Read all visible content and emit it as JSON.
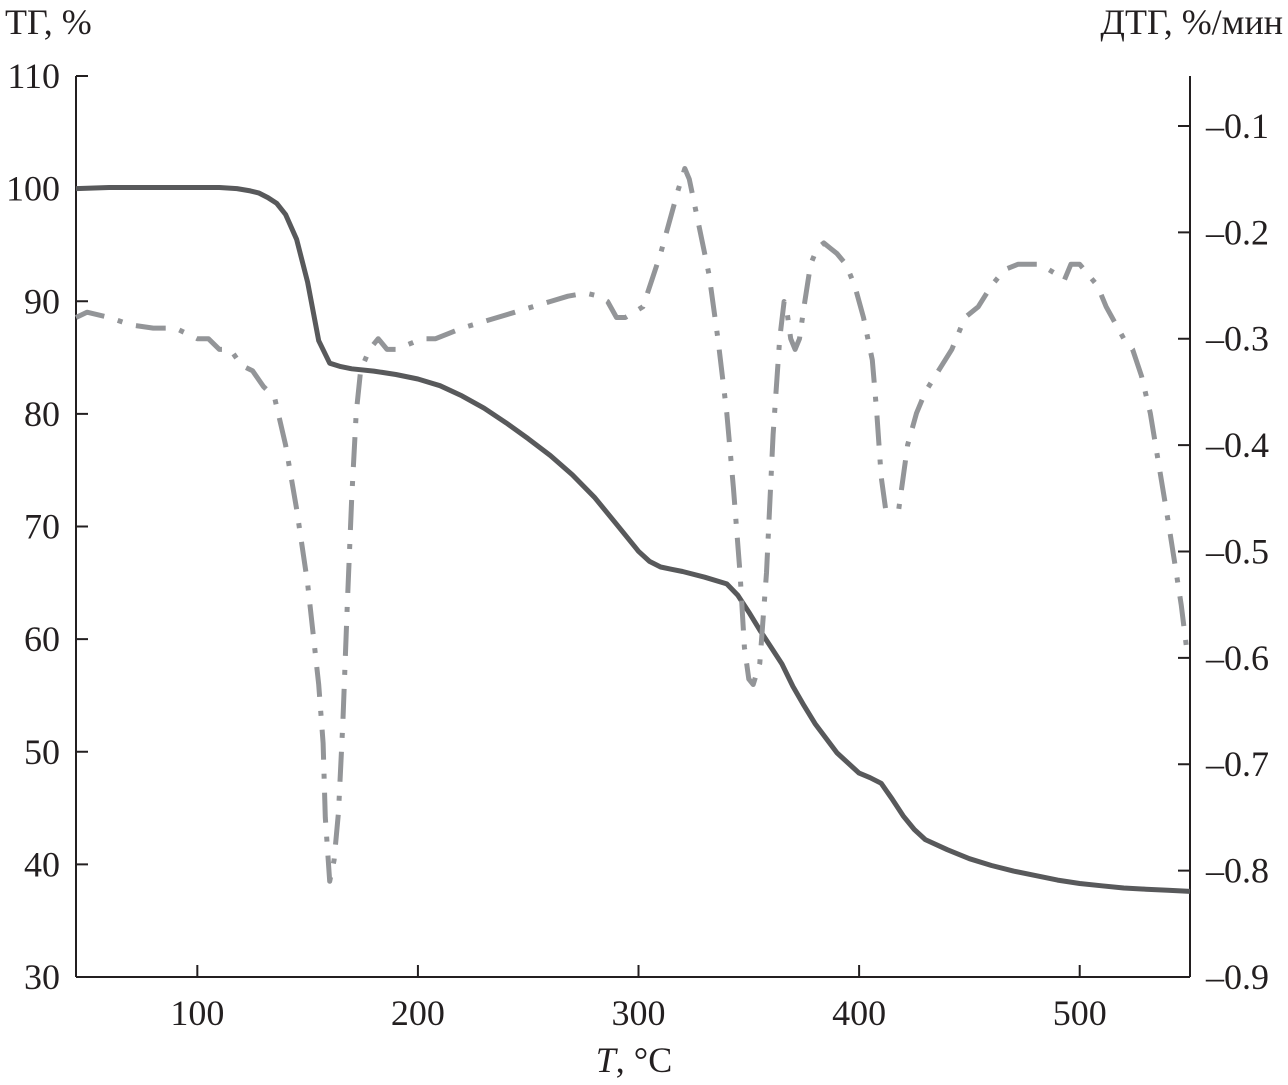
{
  "chart_data": {
    "type": "line",
    "title": "",
    "xlabel": "T, °C",
    "xlabel_var": "T",
    "xlabel_unit": ", °C",
    "ylabel_left": "ТГ, %",
    "ylabel_right": "ДТГ, %/мин",
    "xlim": [
      45,
      550
    ],
    "ylim_left": [
      30,
      110
    ],
    "ylim_right": [
      -0.9,
      -0.053
    ],
    "x_ticks": [
      100,
      200,
      300,
      400,
      500
    ],
    "y_ticks_left": [
      30,
      40,
      50,
      60,
      70,
      80,
      90,
      100,
      110
    ],
    "y_ticks_right": [
      -0.1,
      -0.2,
      -0.3,
      -0.4,
      -0.5,
      -0.6,
      -0.7,
      -0.8,
      -0.9
    ],
    "y_tick_labels_right": [
      "–0.1",
      "–0.2",
      "–0.3",
      "–0.4",
      "–0.5",
      "–0.6",
      "–0.7",
      "–0.8",
      "–0.9"
    ],
    "grid": false,
    "colors": {
      "tg": "#58595b",
      "dtg": "#939598",
      "axes": "#231f20"
    },
    "series": [
      {
        "axis": "left",
        "style": "solid",
        "x": [
          45,
          60,
          80,
          100,
          110,
          118,
          124,
          128,
          132,
          136,
          140,
          145,
          150,
          155,
          160,
          165,
          170,
          180,
          190,
          200,
          210,
          220,
          230,
          240,
          250,
          260,
          270,
          280,
          290,
          300,
          305,
          310,
          315,
          320,
          330,
          340,
          345,
          350,
          355,
          360,
          365,
          370,
          375,
          380,
          390,
          400,
          405,
          410,
          415,
          420,
          425,
          430,
          440,
          450,
          460,
          470,
          480,
          490,
          500,
          510,
          520,
          530,
          540,
          550
        ],
        "values": [
          100,
          100.1,
          100.1,
          100.1,
          100.1,
          100.0,
          99.8,
          99.6,
          99.2,
          98.7,
          97.7,
          95.5,
          91.7,
          86.5,
          84.5,
          84.2,
          84.0,
          83.8,
          83.5,
          83.1,
          82.5,
          81.6,
          80.5,
          79.2,
          77.8,
          76.3,
          74.6,
          72.6,
          70.2,
          67.8,
          66.9,
          66.4,
          66.2,
          66.0,
          65.5,
          64.9,
          63.9,
          62.4,
          60.8,
          59.3,
          57.8,
          55.8,
          54.1,
          52.5,
          49.9,
          48.1,
          47.7,
          47.2,
          45.8,
          44.3,
          43.1,
          42.2,
          41.3,
          40.5,
          39.9,
          39.4,
          39.0,
          38.6,
          38.3,
          38.1,
          37.9,
          37.8,
          37.7,
          37.6
        ]
      },
      {
        "axis": "right",
        "style": "dash-dot",
        "x": [
          45,
          50,
          60,
          70,
          80,
          90,
          95,
          100,
          105,
          110,
          115,
          120,
          125,
          130,
          135,
          140,
          145,
          150,
          155,
          157,
          158,
          160,
          162,
          164,
          166,
          168,
          170,
          172,
          174,
          178,
          182,
          186,
          190,
          196,
          202,
          208,
          214,
          220,
          228,
          236,
          244,
          252,
          260,
          268,
          276,
          282,
          286,
          290,
          294,
          298,
          302,
          306,
          310,
          314,
          318,
          321,
          323,
          327,
          332,
          336,
          340,
          343,
          346,
          348,
          350,
          352,
          355,
          358,
          361,
          364,
          366,
          367,
          369,
          371,
          373,
          375,
          378,
          381,
          384,
          387,
          390,
          394,
          398,
          402,
          406,
          408,
          410,
          412,
          414,
          416,
          418,
          420,
          422,
          426,
          430,
          436,
          442,
          448,
          454,
          460,
          466,
          472,
          478,
          482,
          486,
          490,
          493,
          496,
          500,
          504,
          508,
          512,
          516,
          520,
          524,
          528,
          532,
          536,
          540,
          543,
          546,
          549
        ],
        "values": [
          -0.28,
          -0.275,
          -0.28,
          -0.287,
          -0.29,
          -0.29,
          -0.295,
          -0.3,
          -0.3,
          -0.31,
          -0.31,
          -0.325,
          -0.33,
          -0.345,
          -0.355,
          -0.4,
          -0.46,
          -0.53,
          -0.625,
          -0.68,
          -0.75,
          -0.81,
          -0.79,
          -0.745,
          -0.66,
          -0.55,
          -0.45,
          -0.37,
          -0.33,
          -0.31,
          -0.3,
          -0.31,
          -0.31,
          -0.305,
          -0.3,
          -0.3,
          -0.295,
          -0.29,
          -0.285,
          -0.28,
          -0.275,
          -0.27,
          -0.265,
          -0.26,
          -0.257,
          -0.26,
          -0.265,
          -0.28,
          -0.28,
          -0.275,
          -0.27,
          -0.245,
          -0.22,
          -0.19,
          -0.16,
          -0.14,
          -0.15,
          -0.19,
          -0.24,
          -0.3,
          -0.37,
          -0.44,
          -0.52,
          -0.59,
          -0.62,
          -0.625,
          -0.605,
          -0.52,
          -0.39,
          -0.3,
          -0.265,
          -0.27,
          -0.3,
          -0.31,
          -0.3,
          -0.27,
          -0.23,
          -0.215,
          -0.21,
          -0.215,
          -0.22,
          -0.23,
          -0.25,
          -0.28,
          -0.32,
          -0.37,
          -0.43,
          -0.46,
          -0.46,
          -0.46,
          -0.46,
          -0.43,
          -0.4,
          -0.37,
          -0.35,
          -0.33,
          -0.31,
          -0.28,
          -0.27,
          -0.25,
          -0.235,
          -0.23,
          -0.23,
          -0.23,
          -0.235,
          -0.24,
          -0.245,
          -0.23,
          -0.23,
          -0.24,
          -0.25,
          -0.27,
          -0.285,
          -0.3,
          -0.31,
          -0.335,
          -0.37,
          -0.42,
          -0.47,
          -0.51,
          -0.55,
          -0.6
        ]
      }
    ]
  }
}
